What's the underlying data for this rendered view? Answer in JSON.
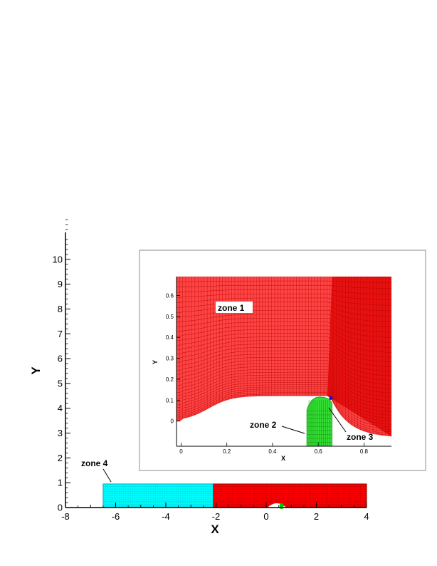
{
  "chart_data": {
    "type": "mesh",
    "main": {
      "xlabel": "X",
      "ylabel": "Y",
      "xlim": [
        -8,
        4
      ],
      "ylim": [
        0,
        11
      ],
      "xticks": [
        -8,
        -6,
        -4,
        -2,
        0,
        2,
        4
      ],
      "yticks": [
        0,
        1,
        2,
        3,
        4,
        5,
        6,
        7,
        8,
        9,
        10
      ],
      "zones": [
        {
          "name": "zone 4",
          "label": "zone 4",
          "x": [
            -6.5,
            -2.1
          ],
          "y": [
            0,
            0.95
          ],
          "color": "#00ffff"
        },
        {
          "name": "zone 1",
          "x": [
            -2.1,
            4
          ],
          "y": [
            0,
            0.95
          ],
          "color": "#ff0000"
        },
        {
          "name": "zone 2",
          "x": [
            0.55,
            0.67
          ],
          "y": [
            0,
            0.12
          ],
          "color": "#00cc00"
        }
      ]
    },
    "inset": {
      "xlabel": "X",
      "ylabel": "Y",
      "xlim": [
        -0.02,
        0.92
      ],
      "ylim": [
        -0.12,
        0.69
      ],
      "xticks": [
        0,
        0.2,
        0.4,
        0.6,
        0.8
      ],
      "yticks": [
        0,
        0.1,
        0.2,
        0.3,
        0.4,
        0.5,
        0.6
      ],
      "zone_labels": [
        "zone 1",
        "zone 2",
        "zone 3"
      ]
    }
  },
  "colors": {
    "zone1": "#ff0000",
    "zone2": "#00cc00",
    "zone3": "#0000ff",
    "zone4": "#00ffff"
  }
}
